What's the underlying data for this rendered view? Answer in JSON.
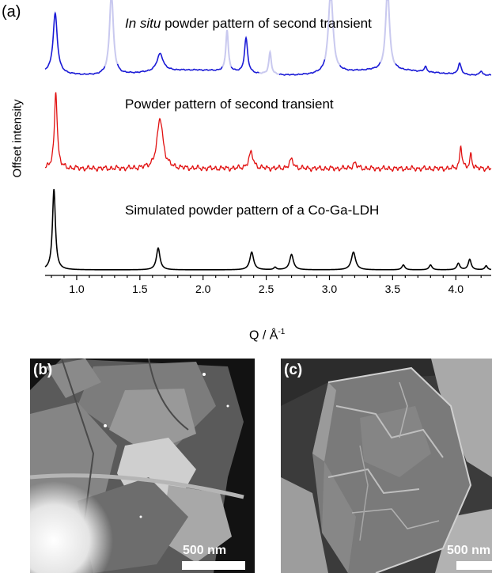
{
  "figure": {
    "panel_a_label": "(a)",
    "panel_b_label": "(b)",
    "panel_c_label": "(c)",
    "scale_bar_b": "500 nm",
    "scale_bar_c": "500 nm"
  },
  "chart_data": {
    "type": "line",
    "title": "",
    "xlabel": "Q / Å",
    "xlabel_sup": "-1",
    "ylabel": "Offset intensity",
    "xlim": [
      0.75,
      4.28
    ],
    "x_ticks": [
      "1.0",
      "1.5",
      "2.0",
      "2.5",
      "3.0",
      "3.5",
      "4.0"
    ],
    "y_ticks": "none",
    "grid": false,
    "legend": "none",
    "series": [
      {
        "label_prefix": "In situ",
        "label_rest": " powder pattern of second transient",
        "color": "#1a1ad6",
        "faded_color": "#c9c9ef",
        "baseline": 0.05,
        "faded_ranges": [
          [
            1.22,
            1.32
          ],
          [
            2.15,
            2.22
          ],
          [
            2.44,
            2.6
          ],
          [
            2.96,
            3.08
          ],
          [
            3.4,
            3.52
          ]
        ],
        "peaks": [
          {
            "q": 0.83,
            "h": 0.95,
            "w": 0.02
          },
          {
            "q": 1.275,
            "h": 1.3,
            "w": 0.018
          },
          {
            "q": 1.66,
            "h": 0.28,
            "w": 0.03
          },
          {
            "q": 2.19,
            "h": 0.65,
            "w": 0.012
          },
          {
            "q": 2.34,
            "h": 0.55,
            "w": 0.015
          },
          {
            "q": 2.53,
            "h": 0.35,
            "w": 0.012
          },
          {
            "q": 3.01,
            "h": 1.3,
            "w": 0.022
          },
          {
            "q": 3.46,
            "h": 1.3,
            "w": 0.018
          },
          {
            "q": 3.76,
            "h": 0.08,
            "w": 0.012
          },
          {
            "q": 4.03,
            "h": 0.18,
            "w": 0.015
          },
          {
            "q": 4.2,
            "h": 0.07,
            "w": 0.012
          }
        ]
      },
      {
        "label": "Powder pattern of second transient",
        "color": "#e11010",
        "baseline": 0.1,
        "peaks": [
          {
            "q": 0.835,
            "h": 0.9,
            "w": 0.013
          },
          {
            "q": 1.66,
            "h": 0.58,
            "w": 0.028
          },
          {
            "q": 2.38,
            "h": 0.18,
            "w": 0.022
          },
          {
            "q": 2.7,
            "h": 0.1,
            "w": 0.02
          },
          {
            "q": 3.2,
            "h": 0.06,
            "w": 0.02
          },
          {
            "q": 4.04,
            "h": 0.27,
            "w": 0.01
          },
          {
            "q": 4.12,
            "h": 0.17,
            "w": 0.01
          }
        ]
      },
      {
        "label": "Simulated powder pattern of a Co-Ga-LDH",
        "color": "#000000",
        "baseline": 0.0,
        "peaks": [
          {
            "q": 0.82,
            "h": 1.0,
            "w": 0.014
          },
          {
            "q": 1.645,
            "h": 0.27,
            "w": 0.017
          },
          {
            "q": 2.385,
            "h": 0.22,
            "w": 0.018
          },
          {
            "q": 2.57,
            "h": 0.03,
            "w": 0.012
          },
          {
            "q": 2.7,
            "h": 0.19,
            "w": 0.018
          },
          {
            "q": 3.19,
            "h": 0.22,
            "w": 0.02
          },
          {
            "q": 3.585,
            "h": 0.06,
            "w": 0.014
          },
          {
            "q": 3.8,
            "h": 0.06,
            "w": 0.014
          },
          {
            "q": 4.02,
            "h": 0.08,
            "w": 0.014
          },
          {
            "q": 4.11,
            "h": 0.13,
            "w": 0.014
          },
          {
            "q": 4.24,
            "h": 0.05,
            "w": 0.012
          }
        ]
      }
    ]
  }
}
